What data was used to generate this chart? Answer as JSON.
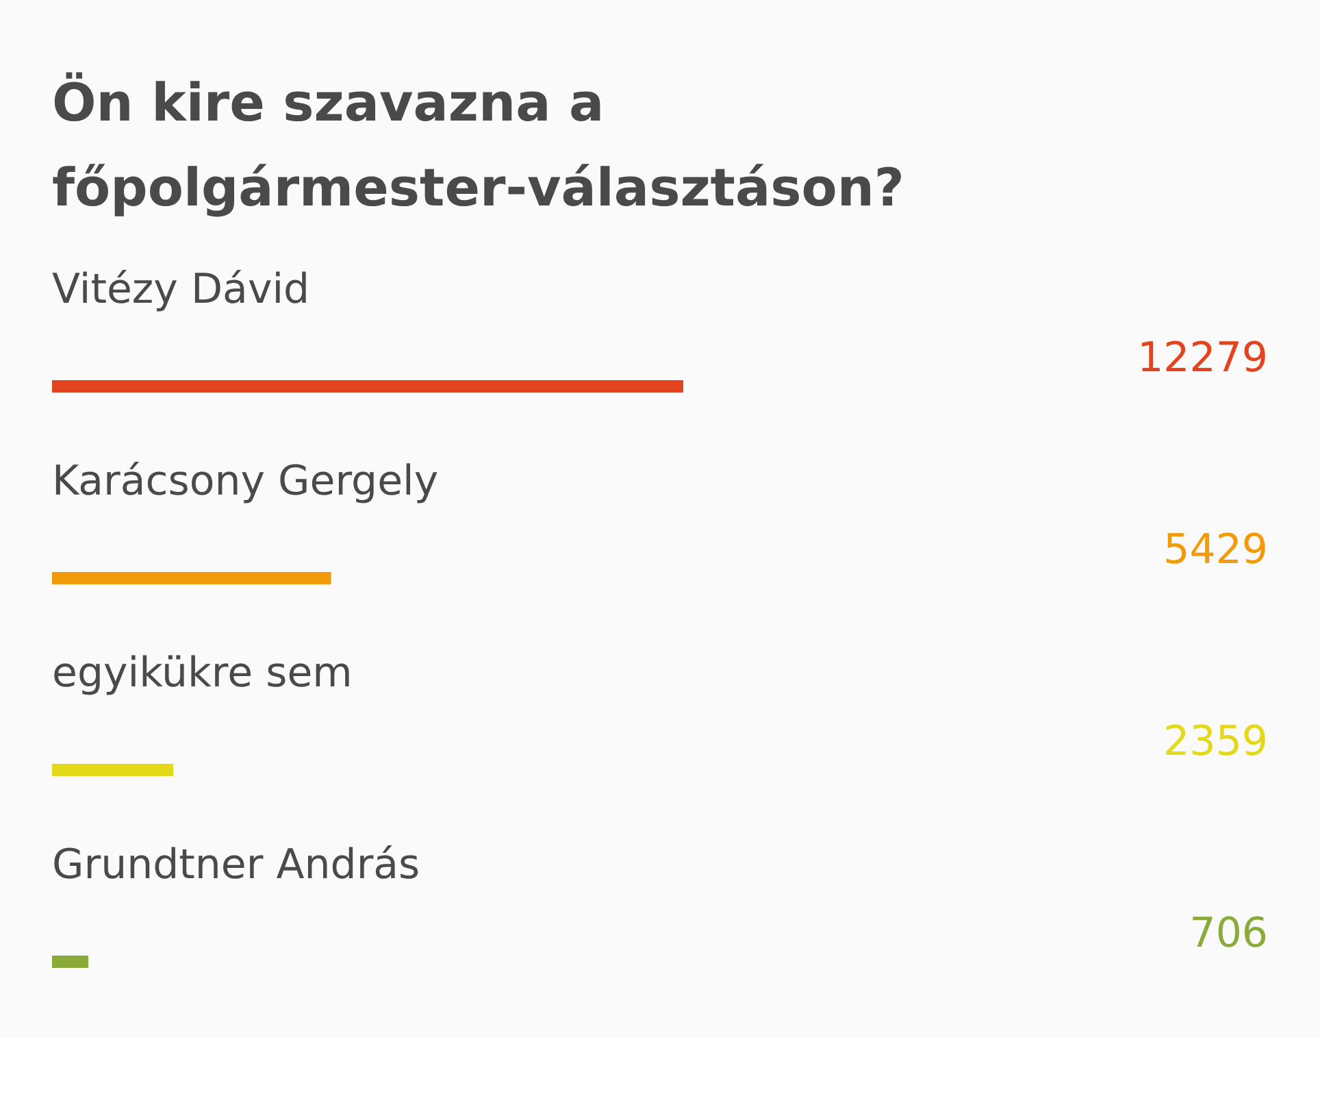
{
  "chart_data": {
    "type": "bar",
    "orientation": "horizontal",
    "title": "Ön kire szavazna a főpolgármester-választáson?",
    "categories": [
      "Vitézy Dávid",
      "Karácsony Gergely",
      "egyikükre sem",
      "Grundtner András"
    ],
    "values": [
      12279,
      5429,
      2359,
      706
    ],
    "colors": [
      "#e2441f",
      "#f39a0a",
      "#e3d91a",
      "#8aab3a"
    ],
    "data_labels": true
  }
}
